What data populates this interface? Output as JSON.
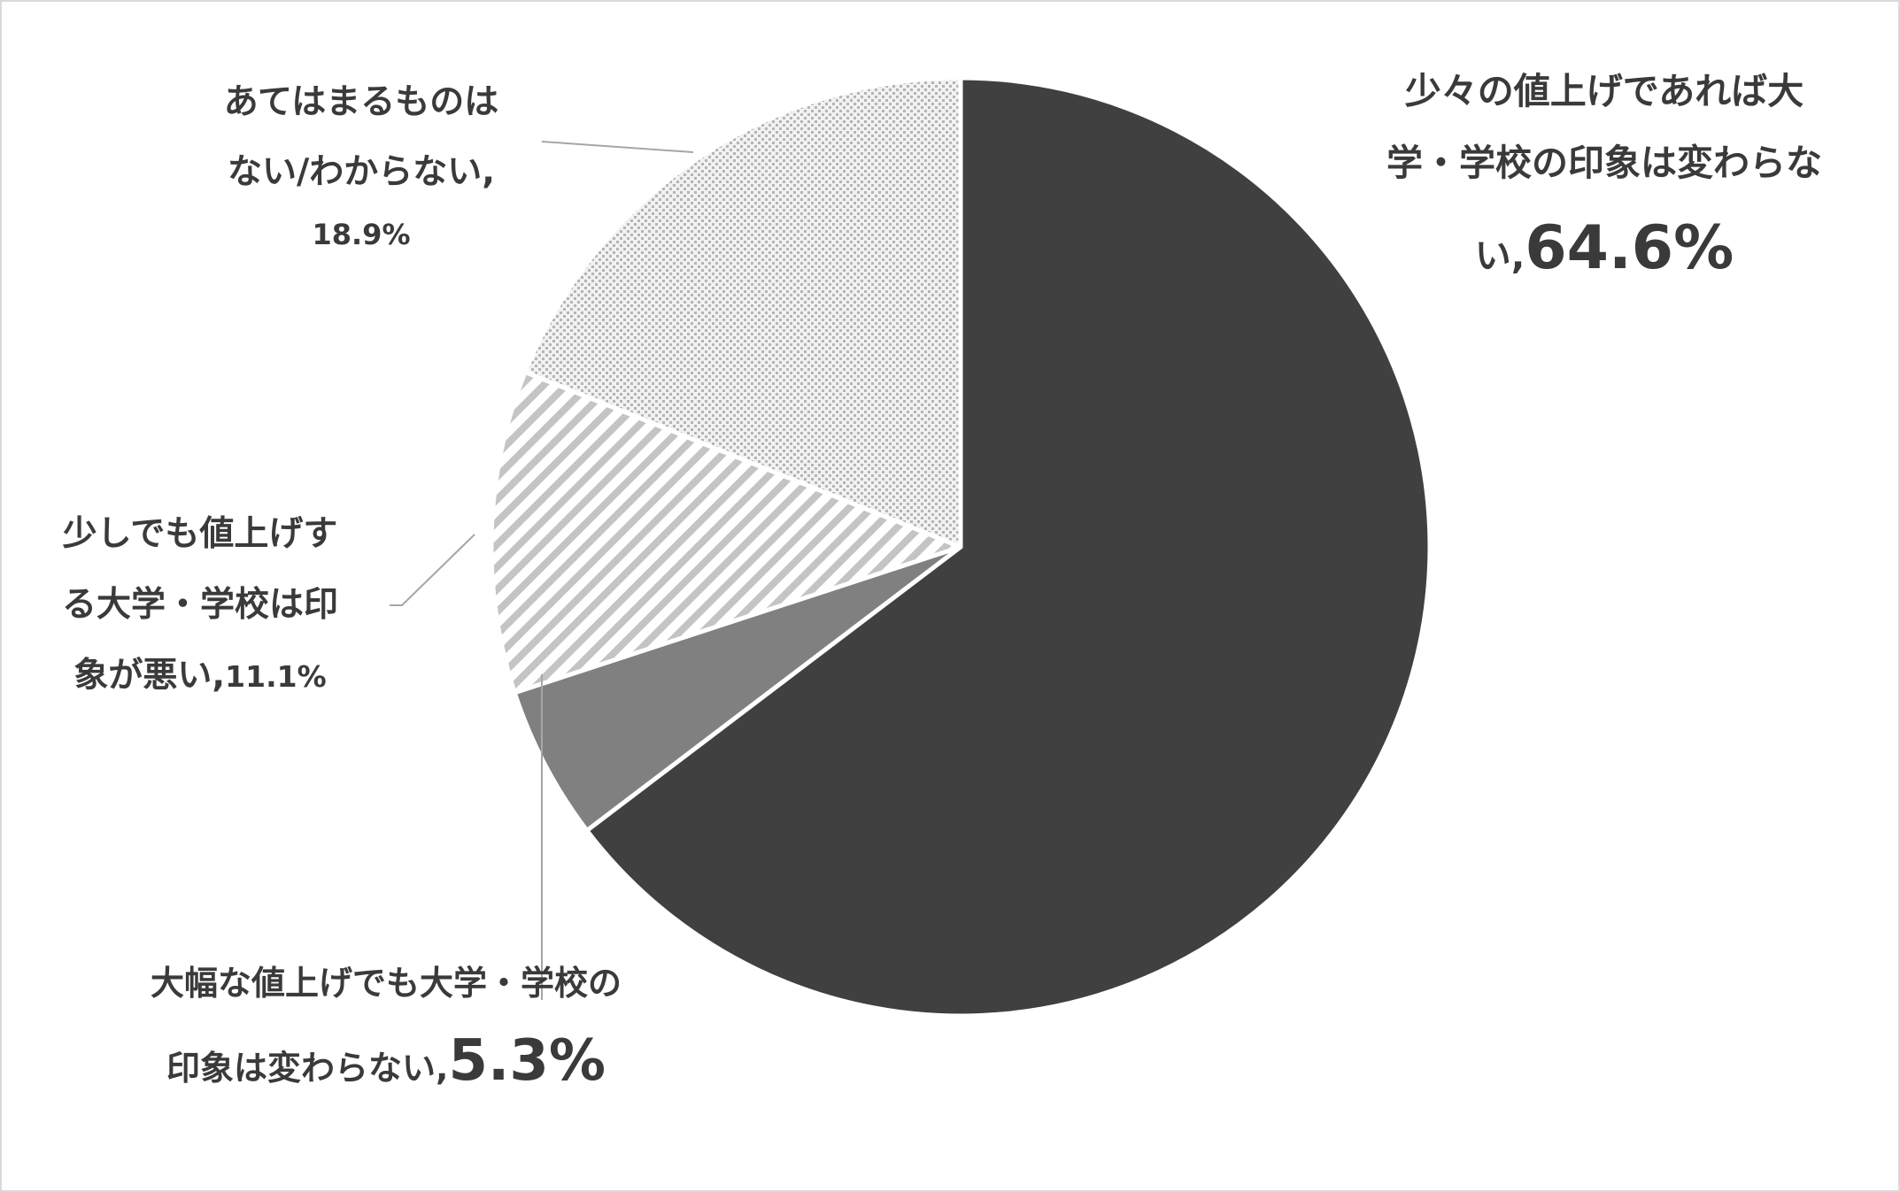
{
  "chart_data": {
    "type": "pie",
    "title": "",
    "start_angle_deg": 0,
    "direction": "clockwise",
    "slices": [
      {
        "label_lines": [
          "少々の値上げであれば大",
          "学・学校の印象は変わらな",
          "い,"
        ],
        "value_text": "64.6%",
        "value": 64.6,
        "color": "#404040",
        "pattern": "solid"
      },
      {
        "label_lines": [
          "大幅な値上げでも大学・学校の",
          "印象は変わらない,"
        ],
        "value_text": "5.3%",
        "value": 5.3,
        "color": "#808080",
        "pattern": "solid"
      },
      {
        "label_lines": [
          "少しでも値上げす",
          "る大学・学校は印",
          "象が悪い,"
        ],
        "value_text": "11.1%",
        "value": 11.1,
        "color": "#c8c8c8",
        "pattern": "diagonal-stripes"
      },
      {
        "label_lines": [
          "あてはまるものは",
          "ない/わからない,"
        ],
        "value_text": "18.9%",
        "value": 18.9,
        "color": "#c8c8c8",
        "pattern": "dots"
      }
    ],
    "legend": "none"
  }
}
